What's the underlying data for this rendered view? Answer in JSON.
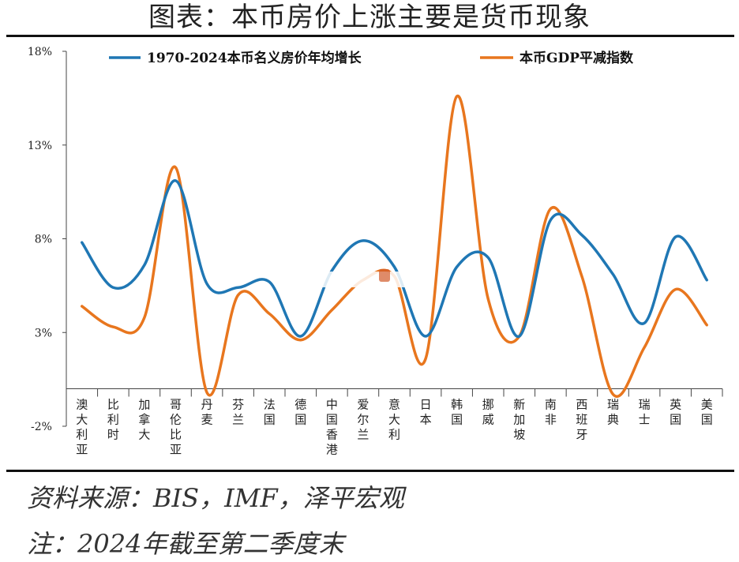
{
  "title": "图表：本币房价上涨主要是货币现象",
  "source": "资料来源：BIS，IMF，泽平宏观",
  "footnote": "注：2024年截至第二季度末",
  "chart_data": {
    "type": "line",
    "categories": [
      "澳大利亚",
      "比利时",
      "加拿大",
      "哥伦比亚",
      "丹麦",
      "芬兰",
      "法国",
      "德国",
      "中国香港",
      "爱尔兰",
      "意大利",
      "日本",
      "韩国",
      "挪威",
      "新加坡",
      "南非",
      "西班牙",
      "瑞典",
      "瑞士",
      "英国",
      "美国"
    ],
    "series": [
      {
        "name": "1970-2024本币名义房价年均增长",
        "color": "#1f77b4",
        "values": [
          7.8,
          5.4,
          6.6,
          11.1,
          5.6,
          5.4,
          5.7,
          2.8,
          6.3,
          7.9,
          6.5,
          2.8,
          6.5,
          7.0,
          2.8,
          9.0,
          8.2,
          6.1,
          3.5,
          8.1,
          5.8
        ]
      },
      {
        "name": "本币GDP平减指数",
        "color": "#e8761e",
        "values": [
          4.4,
          3.3,
          3.8,
          11.8,
          -0.2,
          5.0,
          4.0,
          2.6,
          4.2,
          5.8,
          6.0,
          1.6,
          15.6,
          4.8,
          2.8,
          9.6,
          6.0,
          -0.3,
          2.2,
          5.3,
          3.4
        ]
      }
    ],
    "ylim": [
      -2,
      18
    ],
    "yticks": [
      -2,
      3,
      8,
      13,
      18
    ],
    "ytick_labels": [
      "-2%",
      "3%",
      "8%",
      "13%",
      "18%"
    ],
    "legend_position": "top",
    "grid": false
  }
}
